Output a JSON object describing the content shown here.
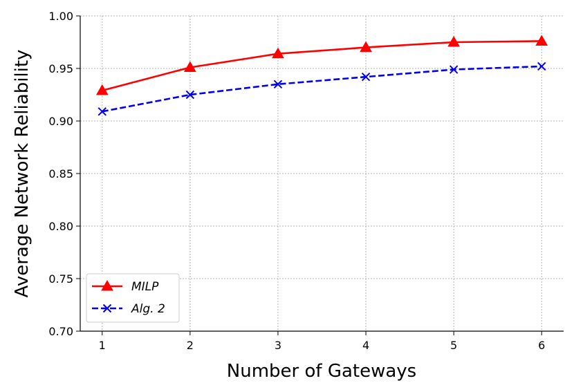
{
  "chart_data": {
    "type": "line",
    "title": "",
    "xlabel": "Number of Gateways",
    "ylabel": "Average Network Reliability",
    "x": [
      1,
      2,
      3,
      4,
      5,
      6
    ],
    "xticks": [
      "1",
      "2",
      "3",
      "4",
      "5",
      "6"
    ],
    "yticks": [
      "0.70",
      "0.75",
      "0.80",
      "0.85",
      "0.90",
      "0.95",
      "1.00"
    ],
    "xlim": [
      0.75,
      6.25
    ],
    "ylim": [
      0.7,
      1.0
    ],
    "grid": true,
    "legend_position": "lower-left",
    "series": [
      {
        "name": "MILP",
        "values": [
          0.929,
          0.951,
          0.964,
          0.97,
          0.975,
          0.976
        ],
        "color": "#ff0000",
        "marker": "triangle",
        "line_style": "solid"
      },
      {
        "name": "Alg. 2",
        "values": [
          0.909,
          0.925,
          0.935,
          0.942,
          0.949,
          0.952
        ],
        "color": "#0000ee",
        "marker": "x",
        "line_style": "dashed"
      }
    ]
  }
}
